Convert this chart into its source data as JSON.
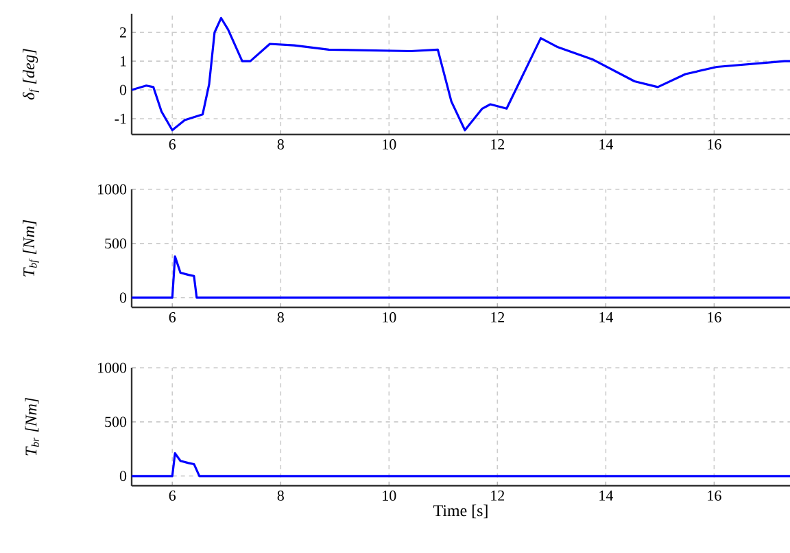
{
  "chart_data": [
    {
      "type": "line",
      "ylabel": "δ$_{f}$ [deg]",
      "xlim": [
        5.25,
        17.4
      ],
      "ylim": [
        -1.55,
        2.65
      ],
      "xticks": [
        6,
        8,
        10,
        12,
        14,
        16
      ],
      "yticks": [
        -1,
        0,
        1,
        2
      ],
      "grid": true,
      "series": [
        {
          "color": "#0000ff",
          "x": [
            5.25,
            5.52,
            5.65,
            5.8,
            6.0,
            6.23,
            6.56,
            6.68,
            6.78,
            6.9,
            7.03,
            7.29,
            7.44,
            7.8,
            8.25,
            8.89,
            10.4,
            10.9,
            11.15,
            11.4,
            11.72,
            11.87,
            12.17,
            12.8,
            13.1,
            13.77,
            14.53,
            14.96,
            15.47,
            16.05,
            17.3,
            17.4
          ],
          "values": [
            0,
            0.15,
            0.1,
            -0.75,
            -1.4,
            -1.05,
            -0.85,
            0.2,
            2.0,
            2.5,
            2.1,
            1.0,
            1.0,
            1.6,
            1.55,
            1.4,
            1.35,
            1.4,
            -0.4,
            -1.4,
            -0.65,
            -0.5,
            -0.65,
            1.8,
            1.5,
            1.05,
            0.3,
            0.1,
            0.55,
            0.8,
            1.0,
            1.0
          ]
        }
      ]
    },
    {
      "type": "line",
      "ylabel": "T$_{bf}$ [Nm]",
      "xlim": [
        5.25,
        17.4
      ],
      "ylim": [
        -90,
        1000
      ],
      "xticks": [
        6,
        8,
        10,
        12,
        14,
        16
      ],
      "yticks": [
        0,
        500,
        1000
      ],
      "grid": true,
      "series": [
        {
          "color": "#0000ff",
          "x": [
            5.25,
            6.0,
            6.05,
            6.15,
            6.3,
            6.4,
            6.45,
            17.4
          ],
          "values": [
            0,
            0,
            380,
            230,
            210,
            200,
            0,
            0
          ]
        }
      ]
    },
    {
      "type": "line",
      "ylabel": "T$_{br}$ [Nm]",
      "xlabel": "Time [s]",
      "xlim": [
        5.25,
        17.4
      ],
      "ylim": [
        -90,
        1000
      ],
      "xticks": [
        6,
        8,
        10,
        12,
        14,
        16
      ],
      "yticks": [
        0,
        500,
        1000
      ],
      "grid": true,
      "series": [
        {
          "color": "#0000ff",
          "x": [
            5.25,
            6.0,
            6.05,
            6.15,
            6.3,
            6.4,
            6.5,
            17.4
          ],
          "values": [
            0,
            0,
            210,
            140,
            120,
            110,
            0,
            0
          ]
        }
      ]
    }
  ]
}
